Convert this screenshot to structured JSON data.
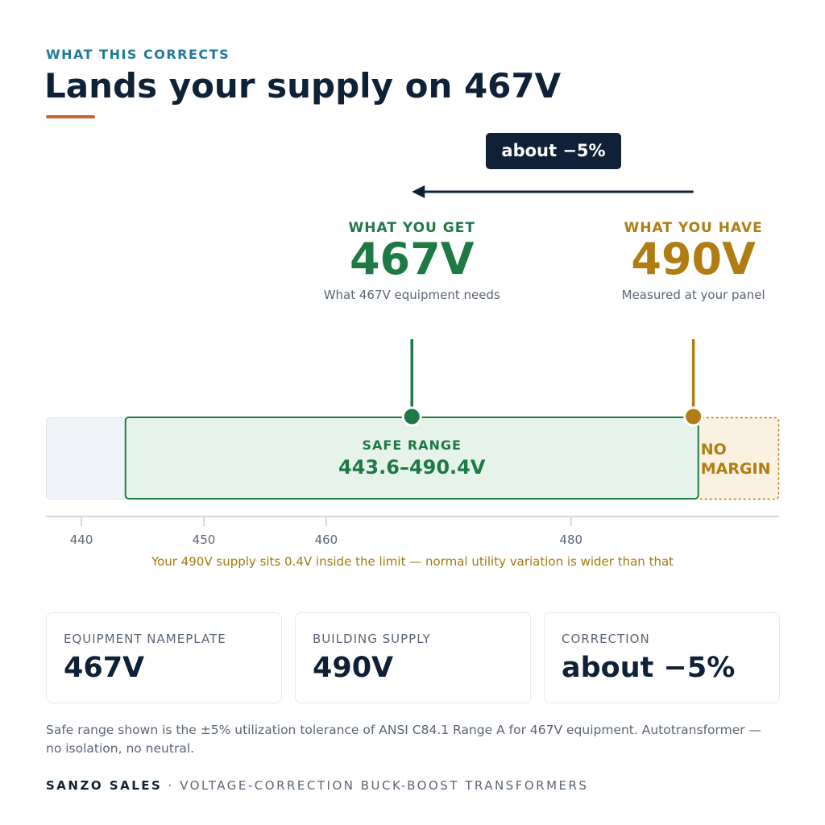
{
  "header": {
    "eyebrow": "WHAT THIS CORRECTS",
    "title": "Lands your supply on 467V"
  },
  "shift": {
    "label": "about −5%"
  },
  "target": {
    "caption": "WHAT YOU GET",
    "value": "467V",
    "note": "What 467V equipment needs"
  },
  "current": {
    "caption": "WHAT YOU HAVE",
    "value": "490V",
    "note": "Measured at your panel"
  },
  "scale": {
    "xlim": [
      437.1,
      497
    ],
    "xticks": [
      440,
      450,
      460,
      480
    ],
    "safe_range": {
      "label": "SAFE RANGE",
      "value_label": "443.6–490.4V",
      "low": 443.6,
      "high": 490.4
    },
    "no_margin_label": "NO MARGIN",
    "markers": [
      467,
      490
    ],
    "note": "Your 490V supply sits 0.4V inside the limit — normal utility variation is wider than that"
  },
  "cards": [
    {
      "label": "EQUIPMENT NAMEPLATE",
      "value": "467V"
    },
    {
      "label": "BUILDING SUPPLY",
      "value": "490V"
    },
    {
      "label": "CORRECTION",
      "value": "about −5%"
    }
  ],
  "footnote": "Safe range shown is the ±5% utilization tolerance of ANSI C84.1 Range A for 467V equipment. Autotransformer — no isolation, no neutral.",
  "footer": {
    "brand": "SANZO SALES",
    "separator": "·",
    "tagline": "VOLTAGE-CORRECTION BUCK-BOOST TRANSFORMERS"
  }
}
